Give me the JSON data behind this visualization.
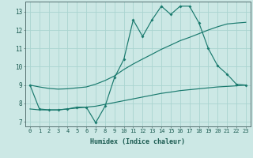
{
  "xlabel": "Humidex (Indice chaleur)",
  "bg_color": "#cce8e5",
  "grid_color": "#aad4d0",
  "line_color": "#1a7a6e",
  "xlim": [
    -0.5,
    23.5
  ],
  "ylim": [
    6.75,
    13.55
  ],
  "xticks": [
    0,
    1,
    2,
    3,
    4,
    5,
    6,
    7,
    8,
    9,
    10,
    11,
    12,
    13,
    14,
    15,
    16,
    17,
    18,
    19,
    20,
    21,
    22,
    23
  ],
  "yticks": [
    7,
    8,
    9,
    10,
    11,
    12,
    13
  ],
  "line1_x": [
    0,
    1,
    2,
    3,
    4,
    5,
    6,
    7,
    8,
    9,
    10,
    11,
    12,
    13,
    14,
    15,
    16,
    17,
    18,
    19,
    20,
    21,
    22,
    23
  ],
  "line1_y": [
    9.0,
    7.7,
    7.65,
    7.65,
    7.7,
    7.8,
    7.8,
    6.95,
    7.85,
    9.4,
    10.4,
    12.55,
    11.65,
    12.55,
    13.3,
    12.85,
    13.3,
    13.3,
    12.4,
    11.0,
    10.05,
    9.6,
    9.05,
    9.0
  ],
  "line2_x": [
    0,
    1,
    2,
    3,
    4,
    5,
    6,
    7,
    8,
    9,
    10,
    11,
    12,
    13,
    14,
    15,
    16,
    17,
    18,
    19,
    20,
    21,
    22,
    23
  ],
  "line2_y": [
    7.7,
    7.65,
    7.65,
    7.65,
    7.7,
    7.75,
    7.8,
    7.85,
    7.95,
    8.05,
    8.15,
    8.25,
    8.35,
    8.45,
    8.55,
    8.62,
    8.7,
    8.75,
    8.8,
    8.85,
    8.9,
    8.93,
    8.96,
    9.0
  ],
  "line3_x": [
    0,
    1,
    2,
    3,
    4,
    5,
    6,
    7,
    8,
    9,
    10,
    11,
    12,
    13,
    14,
    15,
    16,
    17,
    18,
    19,
    20,
    21,
    22,
    23
  ],
  "line3_y": [
    9.0,
    8.9,
    8.82,
    8.78,
    8.8,
    8.85,
    8.9,
    9.05,
    9.25,
    9.5,
    9.85,
    10.15,
    10.42,
    10.68,
    10.95,
    11.18,
    11.42,
    11.6,
    11.8,
    12.0,
    12.18,
    12.33,
    12.38,
    12.42
  ],
  "figsize": [
    3.2,
    2.0
  ],
  "dpi": 100
}
